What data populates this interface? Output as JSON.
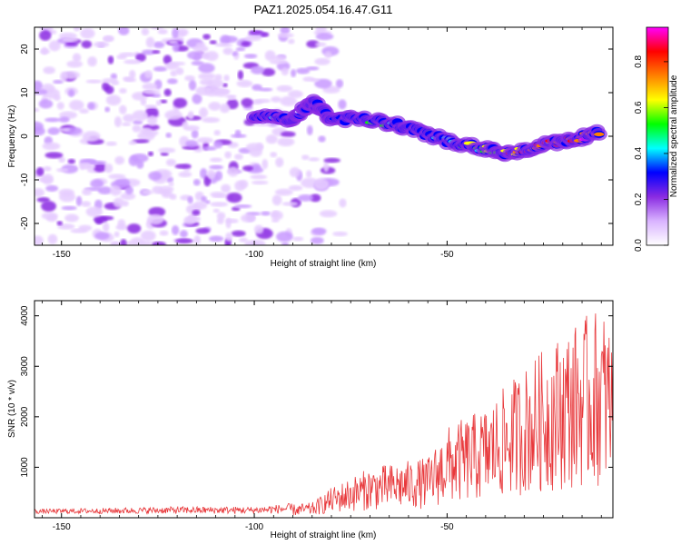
{
  "title": "PAZ1.2025.054.16.47.G11",
  "chart_data": [
    {
      "type": "heatmap",
      "xlabel": "Height of straight line (km)",
      "ylabel": "Frequency (Hz)",
      "xlim": [
        -157,
        -7
      ],
      "ylim": [
        -25,
        25
      ],
      "xticks": [
        -150,
        -100,
        -50
      ],
      "yticks": [
        -20,
        -10,
        0,
        10,
        20
      ],
      "colorbar": {
        "label": "Normalized spectral amplitude",
        "range": [
          0,
          0.95
        ],
        "ticks": [
          0.0,
          0.2,
          0.4,
          0.6,
          0.8
        ],
        "tick_labels": [
          "0.0",
          "0.2",
          "0.4",
          "0.6",
          "0.8"
        ],
        "colormap": "rainbow",
        "stops": [
          "#ffffff",
          "#d9b3ff",
          "#8a2be2",
          "#0000ff",
          "#00ffff",
          "#00ff00",
          "#ffff00",
          "#ff8000",
          "#ff0000",
          "#ff00ff"
        ]
      },
      "trace": [
        {
          "x": -100,
          "y": 5,
          "amp": 0.2
        },
        {
          "x": -90,
          "y": 4,
          "amp": 0.22
        },
        {
          "x": -85,
          "y": 8,
          "amp": 0.18
        },
        {
          "x": -80,
          "y": 4,
          "amp": 0.25
        },
        {
          "x": -70,
          "y": 4,
          "amp": 0.35
        },
        {
          "x": -60,
          "y": 2,
          "amp": 0.38
        },
        {
          "x": -50,
          "y": -1,
          "amp": 0.4
        },
        {
          "x": -40,
          "y": -3,
          "amp": 0.55
        },
        {
          "x": -33,
          "y": -4,
          "amp": 0.75
        },
        {
          "x": -25,
          "y": -2,
          "amp": 0.7
        },
        {
          "x": -18,
          "y": -1,
          "amp": 0.8
        },
        {
          "x": -10,
          "y": 1,
          "amp": 0.85
        }
      ]
    },
    {
      "type": "line",
      "xlabel": "Height of straight line (km)",
      "ylabel": "SNR (10 * v/v)",
      "xlim": [
        -157,
        -7
      ],
      "ylim": [
        0,
        4300
      ],
      "xticks": [
        -150,
        -100,
        -50
      ],
      "yticks": [
        1000,
        2000,
        3000,
        4000
      ],
      "color": "#e8383b",
      "envelope": [
        {
          "x": -157,
          "y": 150
        },
        {
          "x": -120,
          "y": 200
        },
        {
          "x": -100,
          "y": 200
        },
        {
          "x": -85,
          "y": 300
        },
        {
          "x": -80,
          "y": 600
        },
        {
          "x": -70,
          "y": 1000
        },
        {
          "x": -55,
          "y": 1200
        },
        {
          "x": -50,
          "y": 1800
        },
        {
          "x": -40,
          "y": 2200
        },
        {
          "x": -30,
          "y": 3000
        },
        {
          "x": -20,
          "y": 3700
        },
        {
          "x": -10,
          "y": 4200
        },
        {
          "x": -7,
          "y": 3800
        }
      ]
    }
  ]
}
